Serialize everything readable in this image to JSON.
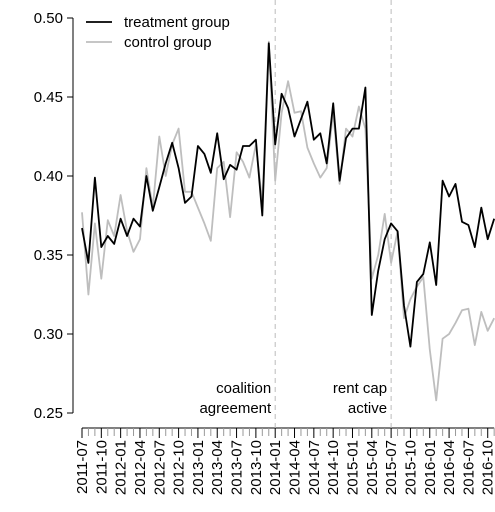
{
  "chart_data": {
    "type": "line",
    "categories": [
      "2011-07",
      null,
      null,
      "2011-10",
      null,
      null,
      "2012-01",
      null,
      null,
      "2012-04",
      null,
      null,
      "2012-07",
      null,
      null,
      "2012-10",
      null,
      null,
      "2013-01",
      null,
      null,
      "2013-04",
      null,
      null,
      "2013-07",
      null,
      null,
      "2013-10",
      null,
      null,
      "2014-01",
      null,
      null,
      "2014-04",
      null,
      null,
      "2014-07",
      null,
      null,
      "2014-10",
      null,
      null,
      "2015-01",
      null,
      null,
      "2015-04",
      null,
      null,
      "2015-07",
      null,
      null,
      "2015-10",
      null,
      null,
      "2016-01",
      null,
      null,
      "2016-04",
      null,
      null,
      "2016-07",
      null,
      null,
      "2016-10",
      null
    ],
    "series": [
      {
        "name": "treatment group",
        "color": "#000000",
        "values": [
          0.367,
          0.345,
          0.399,
          0.355,
          0.362,
          0.357,
          0.373,
          0.362,
          0.373,
          0.368,
          0.4,
          0.378,
          0.393,
          0.408,
          0.421,
          0.405,
          0.383,
          0.387,
          0.419,
          0.414,
          0.402,
          0.427,
          0.398,
          0.407,
          0.404,
          0.419,
          0.419,
          0.423,
          0.375,
          0.484,
          0.42,
          0.452,
          0.443,
          0.425,
          0.436,
          0.447,
          0.423,
          0.427,
          0.408,
          0.446,
          0.397,
          0.424,
          0.43,
          0.43,
          0.456,
          0.312,
          0.34,
          0.36,
          0.37,
          0.365,
          0.318,
          0.292,
          0.333,
          0.338,
          0.358,
          0.331,
          0.397,
          0.387,
          0.395,
          0.371,
          0.369,
          0.355,
          0.38,
          0.36,
          0.373
        ]
      },
      {
        "name": "control group",
        "color": "#bebebe",
        "values": [
          0.377,
          0.325,
          0.37,
          0.335,
          0.372,
          0.362,
          0.388,
          0.365,
          0.352,
          0.36,
          0.405,
          0.38,
          0.425,
          0.4,
          0.42,
          0.43,
          0.39,
          0.39,
          0.38,
          0.37,
          0.359,
          0.405,
          0.409,
          0.374,
          0.415,
          0.409,
          0.399,
          0.42,
          0.383,
          0.485,
          0.397,
          0.44,
          0.46,
          0.44,
          0.441,
          0.418,
          0.408,
          0.399,
          0.405,
          0.44,
          0.395,
          0.43,
          0.425,
          0.444,
          0.43,
          0.335,
          0.35,
          0.376,
          0.345,
          0.365,
          0.31,
          0.322,
          0.33,
          0.336,
          0.29,
          0.258,
          0.297,
          0.3,
          0.307,
          0.315,
          0.316,
          0.293,
          0.314,
          0.302,
          0.31
        ]
      }
    ],
    "ylim": [
      0.25,
      0.5
    ],
    "yticks": [
      0.25,
      {
        "value": 0.3,
        "label": "0.30"
      },
      0.35,
      {
        "value": 0.4,
        "label": "0.40"
      },
      0.45,
      {
        "value": 0.5,
        "label": "0.50"
      }
    ],
    "grid": false,
    "legend": "top-left",
    "annotations": [
      {
        "x": "2014-01",
        "lines": [
          "coalition",
          "agreement"
        ]
      },
      {
        "x": "2015-07",
        "lines": [
          "rent cap",
          "active"
        ]
      }
    ]
  }
}
